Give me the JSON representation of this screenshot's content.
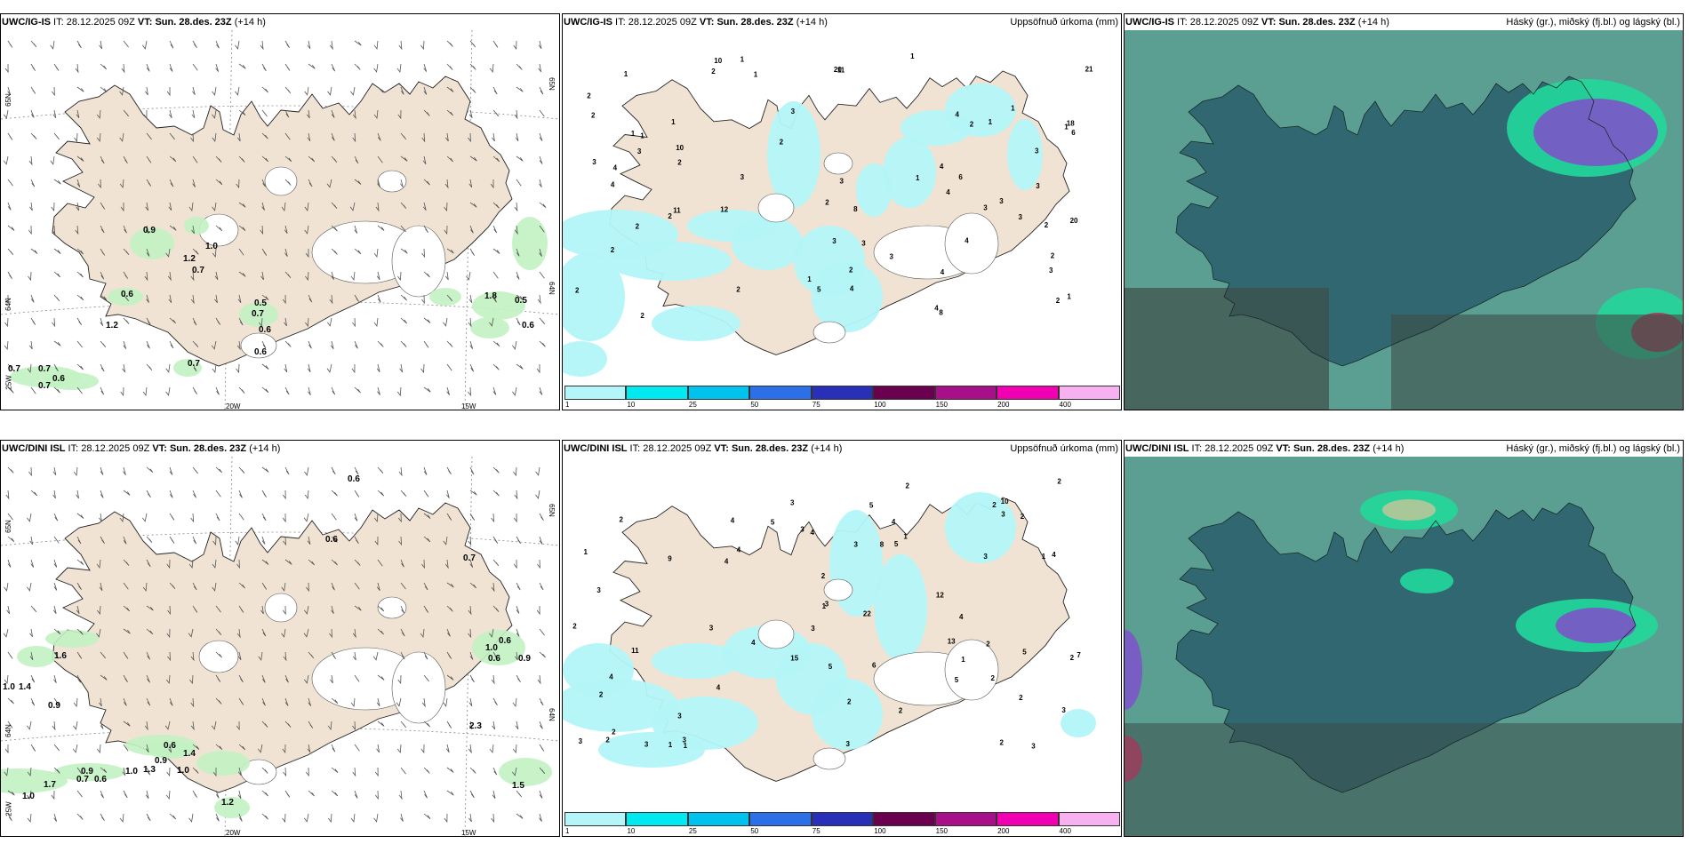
{
  "panels": [
    {
      "model": "UWC/IG-IS",
      "it": "28.12.2025 09Z",
      "vt": "Sun. 28.des. 23Z",
      "lead": "(+14 h)",
      "right": "",
      "axes": {
        "lat1": "65N",
        "lat2": "64N",
        "lon1": "20W",
        "lon2": "15W",
        "lat1r": "65N",
        "lat2r": "64N",
        "lonL": "25W"
      },
      "labels": [
        "0.9",
        "1.2",
        "1.0",
        "0.7",
        "0.6",
        "0.5",
        "0.7",
        "0.6",
        "0.6",
        "1.2",
        "0.7",
        "0.7",
        "0.6",
        "0.7",
        "0.7",
        "1.8",
        "0.5",
        "0.6"
      ]
    },
    {
      "model": "UWC/IG-IS",
      "it": "28.12.2025 09Z",
      "vt": "Sun. 28.des. 23Z",
      "lead": "(+14 h)",
      "right": "Uppsöfnuð úrkoma (mm)",
      "labels": [
        "2",
        "3",
        "1",
        "3",
        "3",
        "4",
        "6",
        "11",
        "8",
        "5",
        "11",
        "4",
        "6",
        "8",
        "2",
        "3",
        "2",
        "1",
        "2",
        "4",
        "2",
        "3",
        "2",
        "12",
        "10",
        "20",
        "4",
        "2",
        "3",
        "2",
        "2",
        "2",
        "1",
        "1",
        "4",
        "4",
        "3",
        "1",
        "3",
        "1",
        "2",
        "4",
        "1",
        "2",
        "2",
        "3",
        "10",
        "3",
        "1",
        "2",
        "3",
        "3",
        "21",
        "4",
        "18",
        "20",
        "2",
        "4",
        "3",
        "1",
        "1",
        "3",
        "1",
        "2",
        "1",
        "2",
        "1"
      ]
    },
    {
      "model": "UWC/IG-IS",
      "it": "28.12.2025 09Z",
      "vt": "Sun. 28.des. 23Z",
      "lead": "(+14 h)",
      "right": "Háský (gr.), miðský (fj.bl.) og lágský (bl.)"
    },
    {
      "model": "UWC/DINI ISL",
      "it": "28.12.2025 09Z",
      "vt": "Sun. 28.des. 23Z",
      "lead": "(+14 h)",
      "right": "",
      "axes": {
        "lat1": "65N",
        "lat2": "64N",
        "lon1": "20W",
        "lon2": "15W",
        "lat1r": "65N",
        "lat2r": "64N",
        "lonL": "25W"
      },
      "labels": [
        "0.6",
        "0.6",
        "0.7",
        "1.6",
        "1.0",
        "1.4",
        "0.9",
        "0.6",
        "0.9",
        "1.4",
        "1.0",
        "1.3",
        "1.7",
        "0.9",
        "0.7",
        "0.6",
        "1.0",
        "1.0",
        "1.2",
        "0.6",
        "1.0",
        "0.6",
        "0.9",
        "2.3",
        "1.5"
      ]
    },
    {
      "model": "UWC/DINI ISL",
      "it": "28.12.2025 09Z",
      "vt": "Sun. 28.des. 23Z",
      "lead": "(+14 h)",
      "right": "Uppsöfnuð úrkoma (mm)",
      "labels": [
        "2",
        "3",
        "1",
        "3",
        "4",
        "3",
        "4",
        "3",
        "2",
        "3",
        "3",
        "9",
        "4",
        "2",
        "2",
        "5",
        "4",
        "3",
        "2",
        "1",
        "2",
        "5",
        "3",
        "1",
        "2",
        "2",
        "5",
        "6",
        "4",
        "3",
        "3",
        "4",
        "3",
        "4",
        "13",
        "12",
        "11",
        "8",
        "7",
        "5",
        "3",
        "5",
        "15",
        "4",
        "10",
        "22",
        "2",
        "2",
        "3",
        "2",
        "2",
        "1",
        "2",
        "5",
        "4",
        "3",
        "2",
        "2",
        "1",
        "2",
        "4",
        "1",
        "3",
        "3",
        "2",
        "1"
      ]
    },
    {
      "model": "UWC/DINI ISL",
      "it": "28.12.2025 09Z",
      "vt": "Sun. 28.des. 23Z",
      "lead": "(+14 h)",
      "right": "Háský (gr.), miðský (fj.bl.) og lágský (bl.)"
    }
  ],
  "colorbar": {
    "ticks": [
      "1",
      "10",
      "25",
      "50",
      "75",
      "100",
      "150",
      "200",
      "400"
    ],
    "colors": [
      "#b3f5f8",
      "#00e8f0",
      "#00c2ec",
      "#2d6fe6",
      "#2830b8",
      "#6a0050",
      "#a8108a",
      "#f000b0",
      "#f7b0f0"
    ]
  },
  "colors": {
    "land": "#f0e3d3",
    "light_precip": "#c2f2c2",
    "cloud_dark": "#2e6470",
    "cloud_mid": "#5a9f92",
    "cloud_high": "#22d89b",
    "cloud_purple": "#7b55c8",
    "cloud_red": "#a33a5c"
  }
}
